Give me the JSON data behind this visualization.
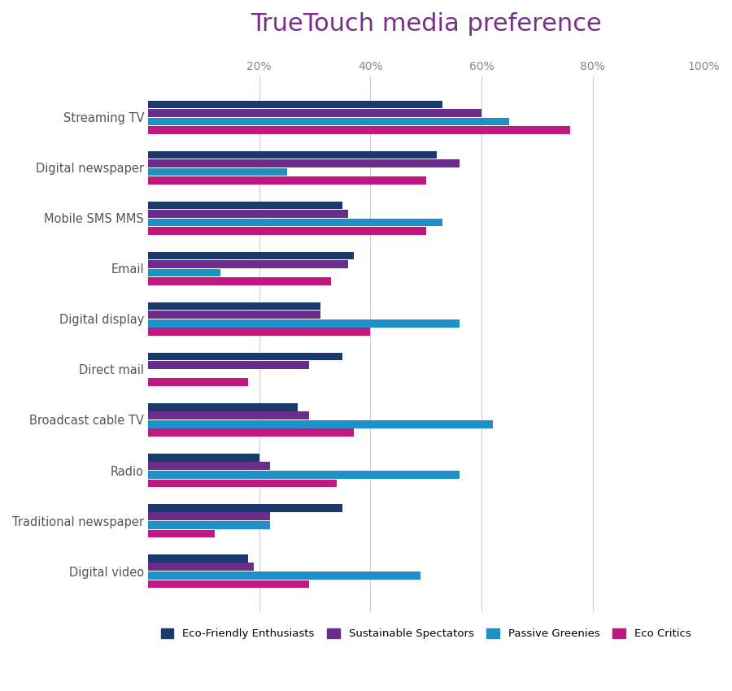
{
  "title": "TrueTouch media preference",
  "title_color": "#7B2D8B",
  "categories": [
    "Streaming TV",
    "Digital newspaper",
    "Mobile SMS MMS",
    "Email",
    "Digital display",
    "Direct mail",
    "Broadcast cable TV",
    "Radio",
    "Traditional newspaper",
    "Digital video"
  ],
  "series": {
    "Eco-Friendly Enthusiasts": [
      53,
      52,
      35,
      37,
      31,
      35,
      27,
      20,
      35,
      18
    ],
    "Sustainable Spectators": [
      60,
      56,
      36,
      36,
      31,
      29,
      29,
      22,
      22,
      19
    ],
    "Passive Greenies": [
      65,
      25,
      53,
      13,
      56,
      0,
      62,
      56,
      22,
      49
    ],
    "Eco Critics": [
      76,
      50,
      50,
      33,
      40,
      18,
      37,
      34,
      12,
      29
    ]
  },
  "colors": {
    "Eco-Friendly Enthusiasts": "#1B3A6B",
    "Sustainable Spectators": "#6B2D8B",
    "Passive Greenies": "#1E90C8",
    "Eco Critics": "#C0187E"
  },
  "xlim": [
    0,
    100
  ],
  "xticks": [
    0,
    20,
    40,
    60,
    80,
    100
  ],
  "xticklabels": [
    "",
    "20%",
    "40%",
    "60%",
    "80%",
    "100%"
  ],
  "bar_height": 0.17,
  "background_color": "#ffffff",
  "grid_color": "#cccccc"
}
